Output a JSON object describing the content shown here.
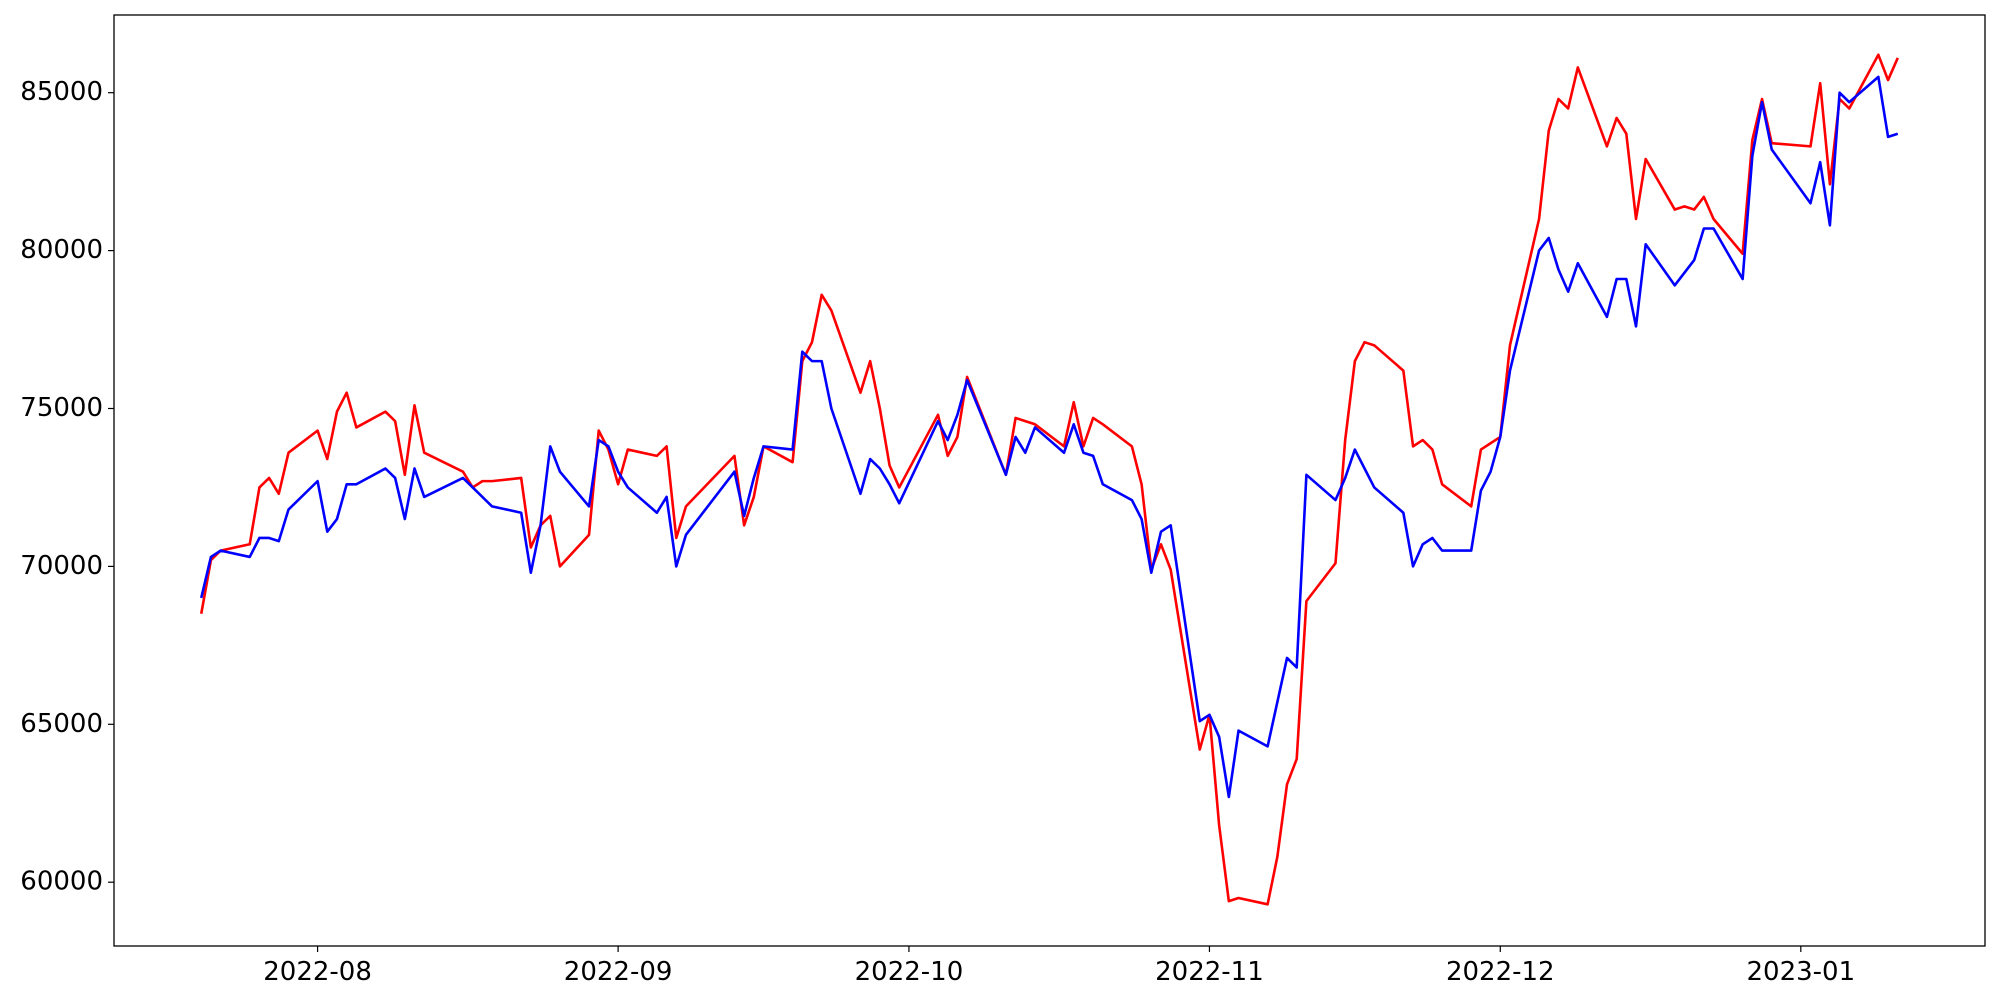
{
  "chart_data": {
    "type": "line",
    "x": [
      "2022-07-20",
      "2022-07-21",
      "2022-07-22",
      "2022-07-25",
      "2022-07-26",
      "2022-07-27",
      "2022-07-28",
      "2022-07-29",
      "2022-08-01",
      "2022-08-02",
      "2022-08-03",
      "2022-08-04",
      "2022-08-05",
      "2022-08-08",
      "2022-08-09",
      "2022-08-10",
      "2022-08-11",
      "2022-08-12",
      "2022-08-16",
      "2022-08-17",
      "2022-08-18",
      "2022-08-19",
      "2022-08-22",
      "2022-08-23",
      "2022-08-24",
      "2022-08-25",
      "2022-08-26",
      "2022-08-29",
      "2022-08-30",
      "2022-08-31",
      "2022-09-01",
      "2022-09-02",
      "2022-09-05",
      "2022-09-06",
      "2022-09-07",
      "2022-09-08",
      "2022-09-13",
      "2022-09-14",
      "2022-09-15",
      "2022-09-16",
      "2022-09-19",
      "2022-09-20",
      "2022-09-21",
      "2022-09-22",
      "2022-09-23",
      "2022-09-26",
      "2022-09-27",
      "2022-09-28",
      "2022-09-29",
      "2022-09-30",
      "2022-10-04",
      "2022-10-05",
      "2022-10-06",
      "2022-10-07",
      "2022-10-11",
      "2022-10-12",
      "2022-10-13",
      "2022-10-14",
      "2022-10-17",
      "2022-10-18",
      "2022-10-19",
      "2022-10-20",
      "2022-10-21",
      "2022-10-24",
      "2022-10-25",
      "2022-10-26",
      "2022-10-27",
      "2022-10-28",
      "2022-10-31",
      "2022-11-01",
      "2022-11-02",
      "2022-11-03",
      "2022-11-04",
      "2022-11-07",
      "2022-11-08",
      "2022-11-09",
      "2022-11-10",
      "2022-11-11",
      "2022-11-14",
      "2022-11-15",
      "2022-11-16",
      "2022-11-17",
      "2022-11-18",
      "2022-11-21",
      "2022-11-22",
      "2022-11-23",
      "2022-11-24",
      "2022-11-25",
      "2022-11-28",
      "2022-11-29",
      "2022-11-30",
      "2022-12-01",
      "2022-12-02",
      "2022-12-05",
      "2022-12-06",
      "2022-12-07",
      "2022-12-08",
      "2022-12-09",
      "2022-12-12",
      "2022-12-13",
      "2022-12-14",
      "2022-12-15",
      "2022-12-16",
      "2022-12-19",
      "2022-12-20",
      "2022-12-21",
      "2022-12-22",
      "2022-12-23",
      "2022-12-26",
      "2022-12-27",
      "2022-12-28",
      "2022-12-29",
      "2023-01-02",
      "2023-01-03",
      "2023-01-04",
      "2023-01-05",
      "2023-01-06",
      "2023-01-09",
      "2023-01-10",
      "2023-01-11"
    ],
    "series": [
      {
        "color": "#ff0000",
        "values": [
          68500,
          70200,
          70500,
          70700,
          72500,
          72800,
          72300,
          73600,
          74300,
          73400,
          74900,
          75500,
          74400,
          74900,
          74600,
          72900,
          75100,
          73600,
          73000,
          72500,
          72700,
          72700,
          72800,
          70600,
          71300,
          71600,
          70000,
          71000,
          74300,
          73700,
          72600,
          73700,
          73500,
          73800,
          70900,
          71900,
          73500,
          71300,
          72200,
          73800,
          73300,
          76500,
          77100,
          78600,
          78100,
          75500,
          76500,
          75000,
          73200,
          72500,
          74800,
          73500,
          74100,
          76000,
          72900,
          74700,
          74600,
          74500,
          73800,
          75200,
          73800,
          74700,
          74500,
          73800,
          72600,
          69900,
          70700,
          69900,
          64200,
          65300,
          61800,
          59400,
          59500,
          59300,
          60800,
          63100,
          63900,
          68900,
          70100,
          74000,
          76500,
          77100,
          77000,
          76200,
          73800,
          74000,
          73700,
          72600,
          71900,
          73700,
          73900,
          74100,
          77000,
          81000,
          83800,
          84800,
          84500,
          85800,
          83300,
          84200,
          83700,
          81000,
          82900,
          81300,
          81400,
          81300,
          81700,
          81000,
          79900,
          83500,
          84800,
          83400,
          83300,
          85300,
          82100,
          84800,
          84500,
          86200,
          85400,
          86100
        ]
      },
      {
        "color": "#0000ff",
        "values": [
          69000,
          70300,
          70500,
          70300,
          70900,
          70900,
          70800,
          71800,
          72700,
          71100,
          71500,
          72600,
          72600,
          73100,
          72800,
          71500,
          73100,
          72200,
          72800,
          72500,
          72200,
          71900,
          71700,
          69800,
          71300,
          73800,
          73000,
          71900,
          74000,
          73800,
          73000,
          72500,
          71700,
          72200,
          70000,
          71000,
          73000,
          71600,
          72800,
          73800,
          73700,
          76800,
          76500,
          76500,
          75000,
          72300,
          73400,
          73100,
          72600,
          72000,
          74600,
          74000,
          74800,
          75900,
          72900,
          74100,
          73600,
          74400,
          73600,
          74500,
          73600,
          73500,
          72600,
          72100,
          71500,
          69800,
          71100,
          71300,
          65100,
          65300,
          64600,
          62700,
          64800,
          64300,
          65700,
          67100,
          66800,
          72900,
          72100,
          72800,
          73700,
          73100,
          72500,
          71700,
          70000,
          70700,
          70900,
          70500,
          70500,
          72400,
          73000,
          74100,
          76200,
          80000,
          80400,
          79400,
          78700,
          79600,
          77900,
          79100,
          79100,
          77600,
          80200,
          78900,
          79300,
          79700,
          80700,
          80700,
          79100,
          83000,
          84700,
          83200,
          81500,
          82800,
          80800,
          85000,
          84700,
          85500,
          83600,
          83700
        ]
      }
    ],
    "xlim": [
      "2022-07-11",
      "2023-01-20"
    ],
    "xticks": [
      {
        "value": "2022-08-01",
        "label": "2022-08"
      },
      {
        "value": "2022-09-01",
        "label": "2022-09"
      },
      {
        "value": "2022-10-01",
        "label": "2022-10"
      },
      {
        "value": "2022-11-01",
        "label": "2022-11"
      },
      {
        "value": "2022-12-01",
        "label": "2022-12"
      },
      {
        "value": "2023-01-01",
        "label": "2023-01"
      }
    ],
    "ylim": [
      57980,
      87460
    ],
    "yticks": [
      60000,
      65000,
      70000,
      75000,
      80000,
      85000
    ],
    "grid": false
  }
}
